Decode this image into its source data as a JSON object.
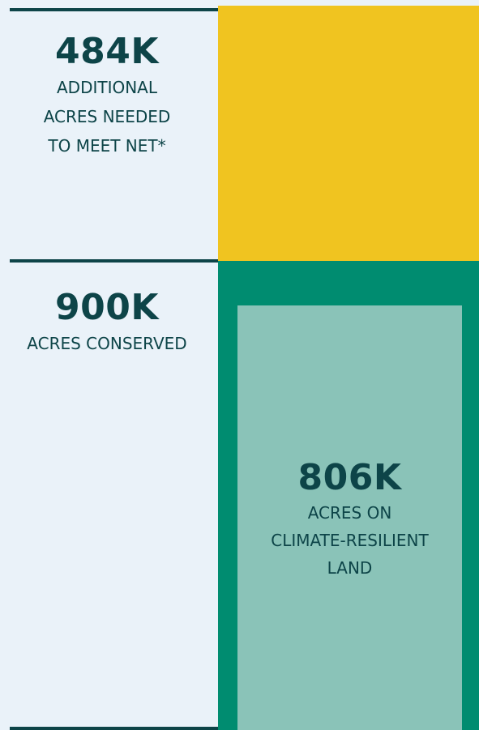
{
  "stats": [
    {
      "value": "484K",
      "label_lines": [
        "ADDITIONAL",
        "ACRES NEEDED",
        "TO MEET NET*"
      ]
    },
    {
      "value": "900K",
      "label_lines": [
        "ACRES CONSERVED"
      ]
    },
    {
      "value": "806K",
      "label_lines": [
        "ACRES ON",
        "CLIMATE-RESILIENT",
        "LAND"
      ]
    }
  ]
}
